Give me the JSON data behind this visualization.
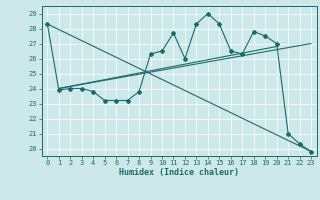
{
  "title": "",
  "xlabel": "Humidex (Indice chaleur)",
  "ylabel": "",
  "bg_color": "#cce8e8",
  "line_color": "#1a6b6b",
  "xlim": [
    -0.5,
    23.5
  ],
  "ylim": [
    19.5,
    29.5
  ],
  "xticks": [
    0,
    1,
    2,
    3,
    4,
    5,
    6,
    7,
    8,
    9,
    10,
    11,
    12,
    13,
    14,
    15,
    16,
    17,
    18,
    19,
    20,
    21,
    22,
    23
  ],
  "yticks": [
    20,
    21,
    22,
    23,
    24,
    25,
    26,
    27,
    28,
    29
  ],
  "curve1_x": [
    0,
    1,
    2,
    3,
    4,
    5,
    6,
    7,
    8,
    9,
    10,
    11,
    12,
    13,
    14,
    15,
    16,
    17,
    18,
    19,
    20,
    21,
    22,
    23
  ],
  "curve1_y": [
    28.3,
    23.9,
    24.0,
    24.0,
    23.8,
    23.2,
    23.2,
    23.2,
    23.8,
    26.3,
    26.5,
    27.7,
    26.0,
    28.3,
    29.0,
    28.3,
    26.5,
    26.3,
    27.8,
    27.5,
    27.0,
    21.0,
    20.3,
    19.8
  ],
  "trend1_x": [
    1,
    20
  ],
  "trend1_y": [
    24.0,
    26.8
  ],
  "trend2_x": [
    1,
    23
  ],
  "trend2_y": [
    24.0,
    27.0
  ],
  "trend3_x": [
    0,
    23
  ],
  "trend3_y": [
    28.3,
    19.8
  ],
  "tick_fontsize": 5.0,
  "xlabel_fontsize": 6.0,
  "marker_size": 2.0,
  "line_width": 0.8
}
